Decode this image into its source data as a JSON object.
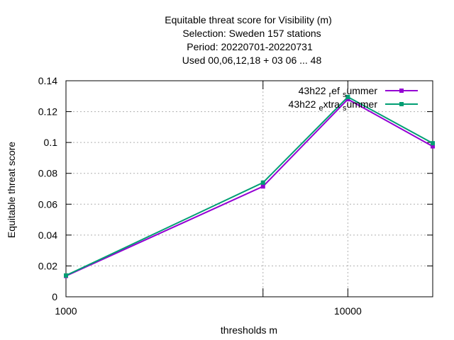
{
  "chart_data": {
    "type": "line",
    "title_lines": [
      "Equitable threat score  for Visibility (m)",
      "Selection: Sweden    157 stations",
      "Period: 20220701-20220731",
      "Used  00,06,12,18  + 03 06 ... 48"
    ],
    "xlabel": "thresholds m",
    "ylabel": "Equitable threat score",
    "x_scale": "log",
    "xlim": [
      1000,
      20000
    ],
    "ylim": [
      0,
      0.14
    ],
    "x_ticks": [
      1000,
      10000
    ],
    "x_tick_labels": [
      "1000",
      "10000"
    ],
    "x_minor_ticks": [
      5000,
      20000
    ],
    "y_ticks": [
      0,
      0.02,
      0.04,
      0.06,
      0.08,
      0.1,
      0.12,
      0.14
    ],
    "y_tick_labels": [
      "0",
      "0.02",
      "0.04",
      "0.06",
      "0.08",
      "0.1",
      "0.12",
      "0.14"
    ],
    "grid": true,
    "legend_position": "top-right",
    "series": [
      {
        "name": "43h22 ref summer",
        "legend_parts": [
          "43h22",
          "r",
          "ef",
          "s",
          "ummer"
        ],
        "color": "#9400d3",
        "x": [
          1000,
          5000,
          10000,
          20000
        ],
        "values": [
          0.0135,
          0.0715,
          0.128,
          0.0975
        ]
      },
      {
        "name": "43h22 extra summer",
        "legend_parts": [
          "43h22",
          "e",
          "xtra",
          "s",
          "ummer"
        ],
        "color": "#009e73",
        "x": [
          1000,
          5000,
          10000,
          20000
        ],
        "values": [
          0.0138,
          0.074,
          0.1295,
          0.0995
        ]
      }
    ]
  }
}
